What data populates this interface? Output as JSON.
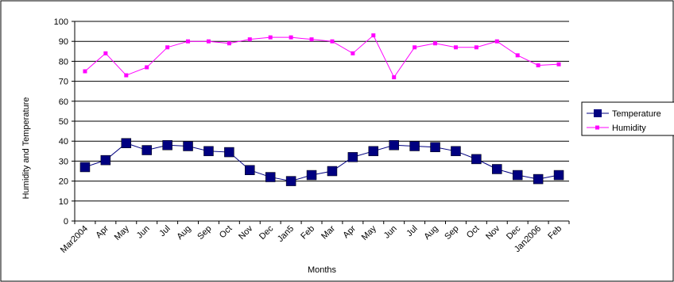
{
  "chart_data": {
    "type": "line",
    "categories": [
      "Mar2004",
      "Apr",
      "May",
      "Jun",
      "Jul",
      "Aug",
      "Sep",
      "Oct",
      "Nov",
      "Dec",
      "Jan5",
      "Feb",
      "Mar",
      "Apr",
      "May",
      "Jun",
      "Jul",
      "Aug",
      "Sep",
      "Oct",
      "Nov",
      "Dec",
      "Jan2006",
      "Feb"
    ],
    "series": [
      {
        "name": "Temperature",
        "color": "#000080",
        "marker": "square-large",
        "values": [
          27,
          30.5,
          39,
          35.5,
          38,
          37.5,
          35,
          34.5,
          25.5,
          22,
          20,
          23,
          25,
          32,
          35,
          38,
          37.5,
          37,
          35,
          31,
          26,
          23,
          21,
          23
        ]
      },
      {
        "name": "Humidity",
        "color": "#ff00ff",
        "marker": "square-small",
        "values": [
          75,
          84,
          73,
          77,
          87,
          90,
          90,
          89,
          91,
          92,
          92,
          91,
          90,
          84,
          93,
          72,
          87,
          89,
          87,
          87,
          90,
          83,
          78,
          78.5
        ]
      }
    ],
    "xlabel": "Months",
    "ylabel": "Humidity and Temperature",
    "ylim": [
      0,
      100
    ],
    "yticks": [
      0,
      10,
      20,
      30,
      40,
      50,
      60,
      70,
      80,
      90,
      100
    ],
    "grid": true,
    "legend_position": "right"
  }
}
